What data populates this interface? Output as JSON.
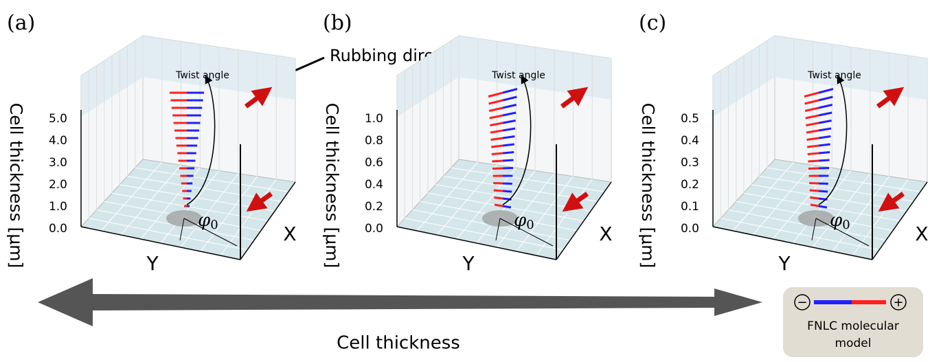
{
  "panels": [
    {
      "label": "(a)",
      "axis_title": "Cell thickness [μm]",
      "ticks": [
        "0.0",
        "1.0",
        "2.0",
        "3.0",
        "4.0",
        "5.0"
      ],
      "twist": "Twist angle",
      "y_axis": "Y",
      "x_axis": "X",
      "angle": {
        "symbol": "φ",
        "subscript": "0"
      }
    },
    {
      "label": "(b)",
      "axis_title": "Cell thickness [μm]",
      "ticks": [
        "0.0",
        "0.2",
        "0.4",
        "0.6",
        "0.8",
        "1.0"
      ],
      "twist": "Twist angle",
      "y_axis": "Y",
      "x_axis": "X",
      "angle": {
        "symbol": "φ",
        "subscript": "0"
      }
    },
    {
      "label": "(c)",
      "axis_title": "Cell thickness [μm]",
      "ticks": [
        "0.0",
        "0.1",
        "0.2",
        "0.3",
        "0.4",
        "0.5"
      ],
      "twist": "Twist angle",
      "y_axis": "Y",
      "x_axis": "X",
      "angle": {
        "symbol": "φ",
        "subscript": "0"
      }
    }
  ],
  "annotation": "Rubbing direction",
  "bottom_arrow": "Cell thickness",
  "legend": {
    "minus": "−",
    "plus": "+",
    "caption_1": "FNLC molecular",
    "caption_2": "model"
  }
}
